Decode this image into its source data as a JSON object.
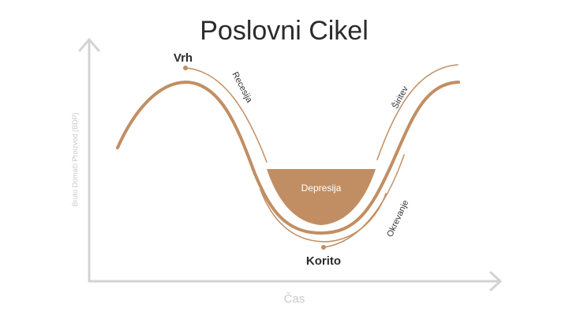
{
  "title": "Poslovni Cikel",
  "axes": {
    "y_label": "Bruto Domači Proizvod (BDP)",
    "x_label": "Čas"
  },
  "points": {
    "peak": "Vrh",
    "trough": "Korito"
  },
  "phases": {
    "recession": "Recesija",
    "depression": "Depresija",
    "recovery": "Okrevanje",
    "expansion": "Širitev"
  },
  "colors": {
    "curve": "#c18e63",
    "depression_fill": "#c18e63",
    "axis": "#d3d3d3",
    "title": "#2b2b2b"
  }
}
